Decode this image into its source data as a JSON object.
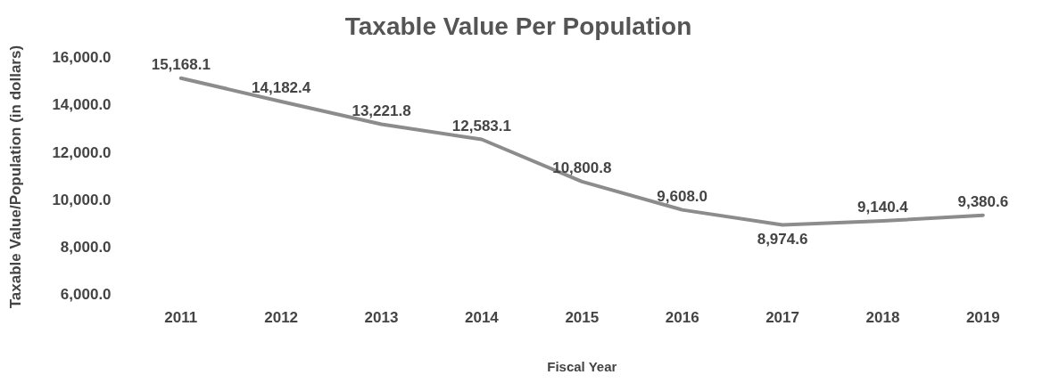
{
  "chart_data": {
    "type": "line",
    "title": "Taxable Value Per Population",
    "xlabel": "Fiscal Year",
    "ylabel": "Taxable Value/Population (in dollars)",
    "categories": [
      "2011",
      "2012",
      "2013",
      "2014",
      "2015",
      "2016",
      "2017",
      "2018",
      "2019"
    ],
    "series": [
      {
        "color": "#8c8c8c",
        "values": [
          15168.1,
          14182.4,
          13221.8,
          12583.1,
          10800.8,
          9608.0,
          8974.6,
          9140.4,
          9380.6
        ],
        "value_labels": [
          "15,168.1",
          "14,182.4",
          "13,221.8",
          "12,583.1",
          "10,800.8",
          "9,608.0",
          "8,974.6",
          "9,140.4",
          "9,380.6"
        ]
      }
    ],
    "ylim": [
      6000,
      16000
    ],
    "yticks": [
      {
        "value": 6000,
        "label": "6,000.0"
      },
      {
        "value": 8000,
        "label": "8,000.0"
      },
      {
        "value": 10000,
        "label": "10,000.0"
      },
      {
        "value": 12000,
        "label": "12,000.0"
      },
      {
        "value": 14000,
        "label": "14,000.0"
      },
      {
        "value": 16000,
        "label": "16,000.0"
      }
    ],
    "grid": false,
    "legend": false,
    "marker": "none",
    "line_style": "solid"
  }
}
